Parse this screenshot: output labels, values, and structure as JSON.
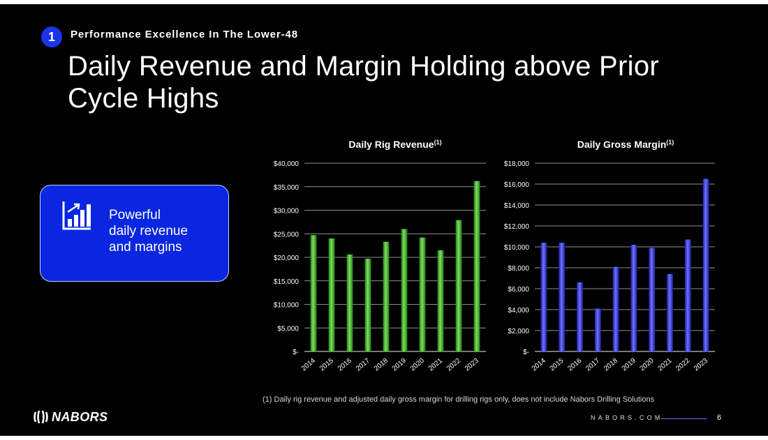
{
  "slide": {
    "badge_number": "1",
    "section_label": "Performance Excellence In The Lower-48",
    "title": "Daily Revenue and Margin Holding above Prior Cycle Highs",
    "callout": {
      "icon": "bar-chart-growth-icon",
      "line1": "Powerful",
      "line2": "daily revenue",
      "line3": "and margins"
    },
    "footnote": "(1)   Daily rig revenue and adjusted daily gross margin for drilling rigs only, does not include Nabors Drilling Solutions",
    "logo_text": "NABORS",
    "site": "NABORS.COM",
    "page_number": "6"
  },
  "colors": {
    "background": "#000000",
    "accent_blue": "#0a26e0",
    "revenue_bar": "#3dbb2e",
    "margin_bar": "#3b3bd6"
  },
  "chart_data": [
    {
      "type": "bar",
      "title": "Daily Rig Revenue",
      "title_sup": "(1)",
      "categories": [
        "2014",
        "2015",
        "2016",
        "2017",
        "2018",
        "2019",
        "2020",
        "2021",
        "2022",
        "2023"
      ],
      "values": [
        24700,
        24000,
        20600,
        19700,
        23300,
        26000,
        24200,
        21500,
        27900,
        36200
      ],
      "ylim": [
        0,
        40000
      ],
      "yticks": [
        0,
        5000,
        10000,
        15000,
        20000,
        25000,
        30000,
        35000,
        40000
      ],
      "ytick_labels": [
        "$-",
        "$5,000",
        "$10,000",
        "$15,000",
        "$20,000",
        "$25,000",
        "$30,000",
        "$35,000",
        "$40,000"
      ],
      "xlabel": "",
      "ylabel": "",
      "grid": true
    },
    {
      "type": "bar",
      "title": "Daily Gross Margin",
      "title_sup": "(1)",
      "categories": [
        "2014",
        "2015",
        "2016",
        "2017",
        "2018",
        "2019",
        "2020",
        "2021",
        "2022",
        "2023"
      ],
      "values": [
        10400,
        10400,
        6600,
        4100,
        8100,
        10200,
        9900,
        7400,
        10700,
        16500
      ],
      "ylim": [
        0,
        18000
      ],
      "yticks": [
        0,
        2000,
        4000,
        6000,
        8000,
        10000,
        12000,
        14000,
        16000,
        18000
      ],
      "ytick_labels": [
        "$-",
        "$2,000",
        "$4,000",
        "$6,000",
        "$8,000",
        "$10,000",
        "$12,000",
        "$14,000",
        "$16,000",
        "$18,000"
      ],
      "xlabel": "",
      "ylabel": "",
      "grid": true
    }
  ]
}
